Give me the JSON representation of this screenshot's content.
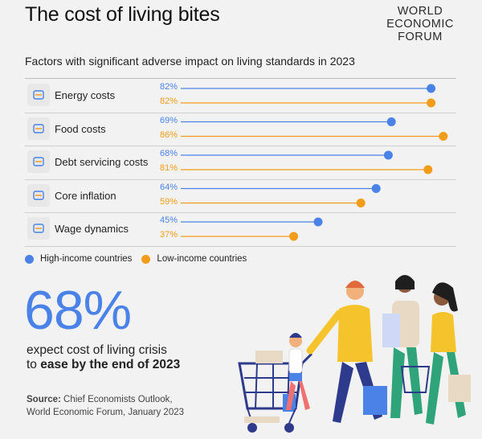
{
  "header": {
    "title": "The cost of living bites",
    "logo_lines": [
      "WORLD",
      "ECONOMIC",
      "FORUM"
    ]
  },
  "chart_data": {
    "type": "dot",
    "title": "Factors with significant adverse impact on living standards in 2023",
    "categories": [
      "Energy costs",
      "Food costs",
      "Debt servicing costs",
      "Core inflation",
      "Wage dynamics"
    ],
    "series": [
      {
        "name": "High-income countries",
        "color": "#4a82e8",
        "values": [
          82,
          69,
          68,
          64,
          45
        ],
        "labels": [
          "82%",
          "69%",
          "68%",
          "64%",
          "45%"
        ]
      },
      {
        "name": "Low-income countries",
        "color": "#f39c1a",
        "values": [
          82,
          86,
          81,
          59,
          37
        ],
        "labels": [
          "82%",
          "86%",
          "81%",
          "59%",
          "37%"
        ]
      }
    ],
    "xlim": [
      0,
      100
    ],
    "legend_position": "bottom-left",
    "icons": [
      "energy-icon",
      "food-icon",
      "debt-icon",
      "inflation-icon",
      "wage-icon"
    ]
  },
  "highlight": {
    "value": "68%",
    "line1": "expect cost of living crisis",
    "line2_prefix": "to ",
    "line2_bold": "ease by the end of 2023"
  },
  "source": {
    "label": "Source:",
    "line1": "Chief Economists Outlook,",
    "line2": "World Economic Forum, January 2023"
  }
}
